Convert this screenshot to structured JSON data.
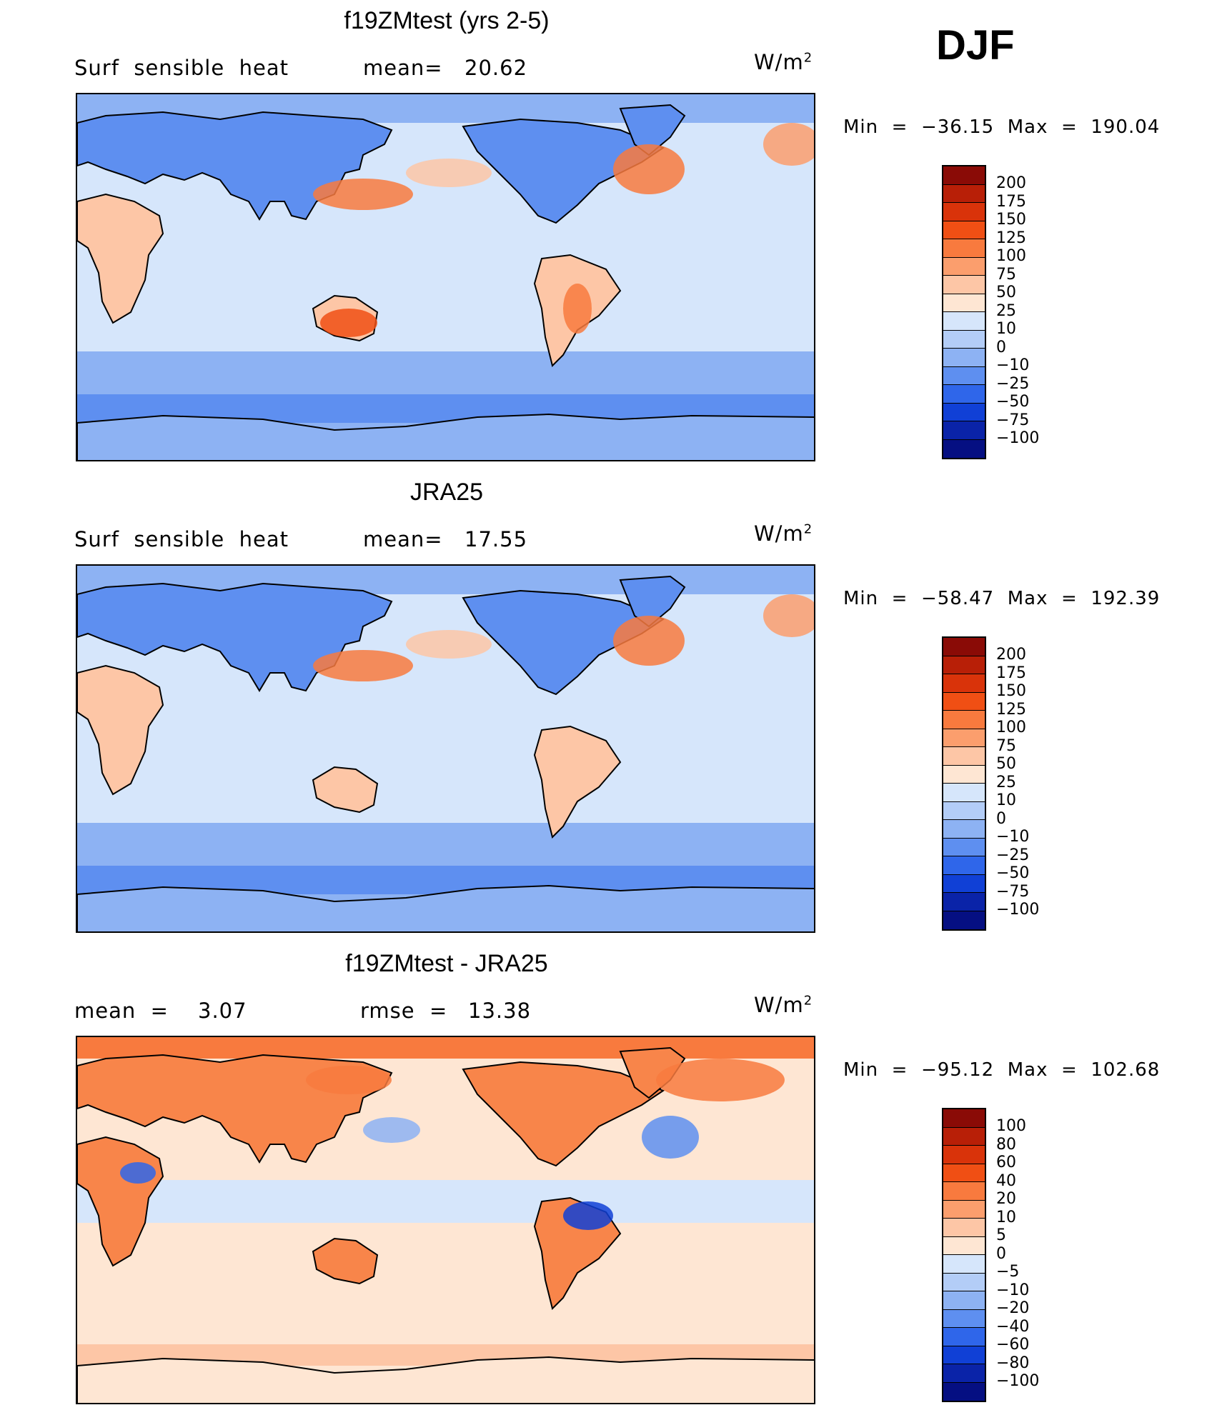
{
  "season": "DJF",
  "units_base": "W/m",
  "units_exp": "2",
  "panels": [
    {
      "title": "f19ZMtest (yrs 2-5)",
      "left_label": "Surf  sensible  heat",
      "stat1_label": "mean=",
      "stat1_value": "20.62",
      "minmax": "Min  =  −36.15  Max  =  190.04",
      "colorbar": {
        "labels": [
          "200",
          "175",
          "150",
          "125",
          "100",
          "75",
          "50",
          "25",
          "10",
          "0",
          "−10",
          "−25",
          "−50",
          "−75",
          "−100"
        ],
        "colors": [
          "#8a0b06",
          "#b81f07",
          "#d9330a",
          "#f04f14",
          "#f87a3e",
          "#fb9e6d",
          "#fdc6a6",
          "#fee6d3",
          "#d6e6fb",
          "#b3cdf7",
          "#8db2f3",
          "#5e8ff0",
          "#2f66ea",
          "#1040d6",
          "#0a23a8",
          "#050f82"
        ]
      }
    },
    {
      "title": "JRA25",
      "left_label": "Surf  sensible  heat",
      "stat1_label": "mean=",
      "stat1_value": "17.55",
      "minmax": "Min  =  −58.47  Max  =  192.39",
      "colorbar": {
        "labels": [
          "200",
          "175",
          "150",
          "125",
          "100",
          "75",
          "50",
          "25",
          "10",
          "0",
          "−10",
          "−25",
          "−50",
          "−75",
          "−100"
        ],
        "colors": [
          "#8a0b06",
          "#b81f07",
          "#d9330a",
          "#f04f14",
          "#f87a3e",
          "#fb9e6d",
          "#fdc6a6",
          "#fee6d3",
          "#d6e6fb",
          "#b3cdf7",
          "#8db2f3",
          "#5e8ff0",
          "#2f66ea",
          "#1040d6",
          "#0a23a8",
          "#050f82"
        ]
      }
    },
    {
      "title": "f19ZMtest - JRA25",
      "left_label": "mean  =",
      "left_value": "3.07",
      "stat1_label": "rmse  =",
      "stat1_value": "13.38",
      "minmax": "Min  =  −95.12  Max  =  102.68",
      "colorbar": {
        "labels": [
          "100",
          "80",
          "60",
          "40",
          "20",
          "10",
          "5",
          "0",
          "−5",
          "−10",
          "−20",
          "−40",
          "−60",
          "−80",
          "−100"
        ],
        "colors": [
          "#8a0b06",
          "#b81f07",
          "#d9330a",
          "#f04f14",
          "#f87a3e",
          "#fb9e6d",
          "#fdc6a6",
          "#fee6d3",
          "#d6e6fb",
          "#b3cdf7",
          "#8db2f3",
          "#5e8ff0",
          "#2f66ea",
          "#1040d6",
          "#0a23a8",
          "#050f82"
        ]
      }
    }
  ]
}
